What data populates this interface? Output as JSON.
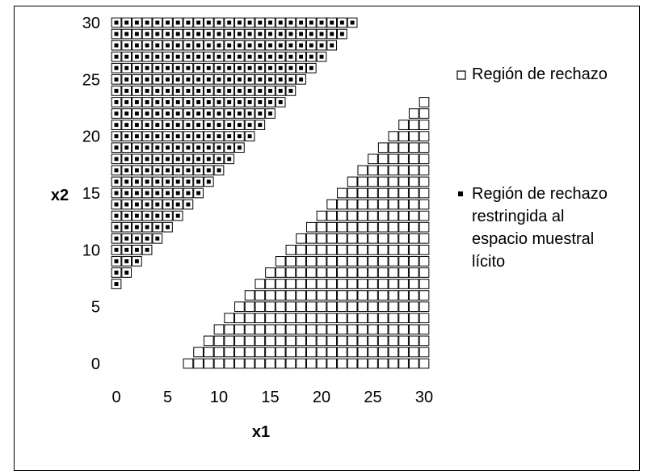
{
  "chart_data": {
    "type": "scatter",
    "xlabel": "x1",
    "ylabel": "x2",
    "xlim": [
      0,
      30
    ],
    "ylim": [
      0,
      30
    ],
    "xticks": [
      "0",
      "5",
      "10",
      "15",
      "20",
      "25",
      "30"
    ],
    "yticks": [
      "0",
      "5",
      "10",
      "15",
      "20",
      "25",
      "30"
    ],
    "grid": false,
    "legend_placement": "right",
    "series": [
      {
        "name": "Región de rechazo",
        "marker": "hollow-square",
        "description": "integer lattice points with |x1 - x2| >= 7 (both triangles)"
      },
      {
        "name_lines": [
          "Región de rechazo",
          "restringida al",
          "espacio muestral",
          "lícito"
        ],
        "marker": "small-filled-square",
        "description": "integer lattice points with x2 - x1 >= 7 (upper-left triangle)"
      }
    ],
    "rule": {
      "threshold": 7
    }
  },
  "colors": {
    "axis": "#000000",
    "marker_fill": "#ffffff",
    "marker_stroke": "#000000",
    "inner_marker": "#000000"
  }
}
